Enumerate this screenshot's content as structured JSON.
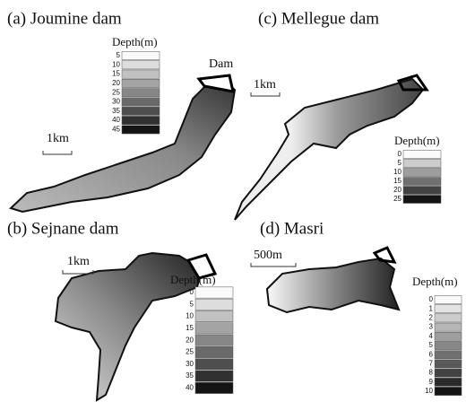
{
  "panels": [
    {
      "title": "(a) Joumine dam",
      "scale_bar": "1km",
      "annotation": "Dam",
      "legend": {
        "title": "Depth(m)",
        "labels": [
          5,
          10,
          15,
          20,
          25,
          30,
          35,
          40,
          45
        ]
      }
    },
    {
      "title": "(c)   Mellegue dam",
      "scale_bar": "1km",
      "legend": {
        "title": "Depth(m)",
        "labels": [
          0,
          5,
          10,
          15,
          20,
          25
        ]
      }
    },
    {
      "title": "(b)   Sejnane dam",
      "scale_bar": "1km",
      "legend": {
        "title": "Depth(m)",
        "labels": [
          0,
          5,
          10,
          15,
          20,
          25,
          30,
          35,
          40
        ]
      }
    },
    {
      "title": "(d)        Masri",
      "scale_bar": "500m",
      "legend": {
        "title": "Depth(m)",
        "labels": [
          0,
          1,
          2,
          3,
          4,
          5,
          6,
          7,
          8,
          9,
          10
        ]
      }
    }
  ]
}
